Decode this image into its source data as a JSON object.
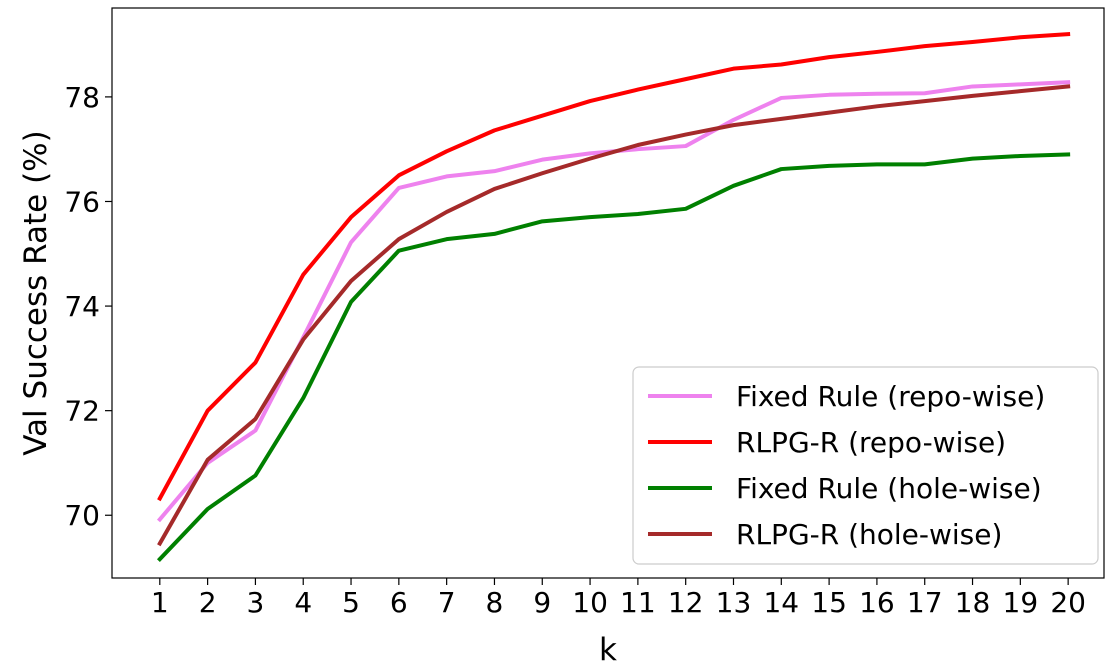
{
  "chart_data": {
    "type": "line",
    "title": "",
    "xlabel": "k",
    "ylabel": "Val Success Rate (%)",
    "x": [
      1,
      2,
      3,
      4,
      5,
      6,
      7,
      8,
      9,
      10,
      11,
      12,
      13,
      14,
      15,
      16,
      17,
      18,
      19,
      20
    ],
    "x_tick_labels": [
      "1",
      "2",
      "3",
      "4",
      "5",
      "6",
      "7",
      "8",
      "9",
      "10",
      "11",
      "12",
      "13",
      "14",
      "15",
      "16",
      "17",
      "18",
      "19",
      "20"
    ],
    "y_ticks": [
      70,
      72,
      74,
      76,
      78
    ],
    "y_tick_labels": [
      "70",
      "72",
      "74",
      "76",
      "78"
    ],
    "xlim": [
      0.0,
      20.75
    ],
    "ylim": [
      68.8,
      79.7
    ],
    "grid": false,
    "legend_position": "lower-right",
    "series": [
      {
        "name": "Fixed Rule (repo-wise)",
        "color": "#ee82ee",
        "values": [
          69.92,
          71.0,
          71.62,
          73.4,
          75.22,
          76.26,
          76.48,
          76.58,
          76.8,
          76.92,
          77.0,
          77.06,
          77.56,
          77.98,
          78.04,
          78.06,
          78.07,
          78.2,
          78.24,
          78.28
        ]
      },
      {
        "name": "RLPG-R (repo-wise)",
        "color": "#ff0000",
        "values": [
          70.32,
          72.0,
          72.92,
          74.6,
          75.7,
          76.5,
          76.96,
          77.36,
          77.64,
          77.92,
          78.14,
          78.34,
          78.54,
          78.62,
          78.76,
          78.86,
          78.97,
          79.05,
          79.14,
          79.2
        ]
      },
      {
        "name": "Fixed Rule (hole-wise)",
        "color": "#008000",
        "values": [
          69.16,
          70.12,
          70.76,
          72.24,
          74.08,
          75.06,
          75.28,
          75.38,
          75.62,
          75.7,
          75.76,
          75.86,
          76.3,
          76.62,
          76.68,
          76.71,
          76.71,
          76.82,
          76.87,
          76.9
        ]
      },
      {
        "name": "RLPG-R (hole-wise)",
        "color": "#a52a2a",
        "values": [
          69.46,
          71.06,
          71.84,
          73.36,
          74.48,
          75.28,
          75.8,
          76.24,
          76.54,
          76.82,
          77.08,
          77.28,
          77.46,
          77.58,
          77.7,
          77.82,
          77.92,
          78.02,
          78.11,
          78.2
        ]
      }
    ]
  }
}
